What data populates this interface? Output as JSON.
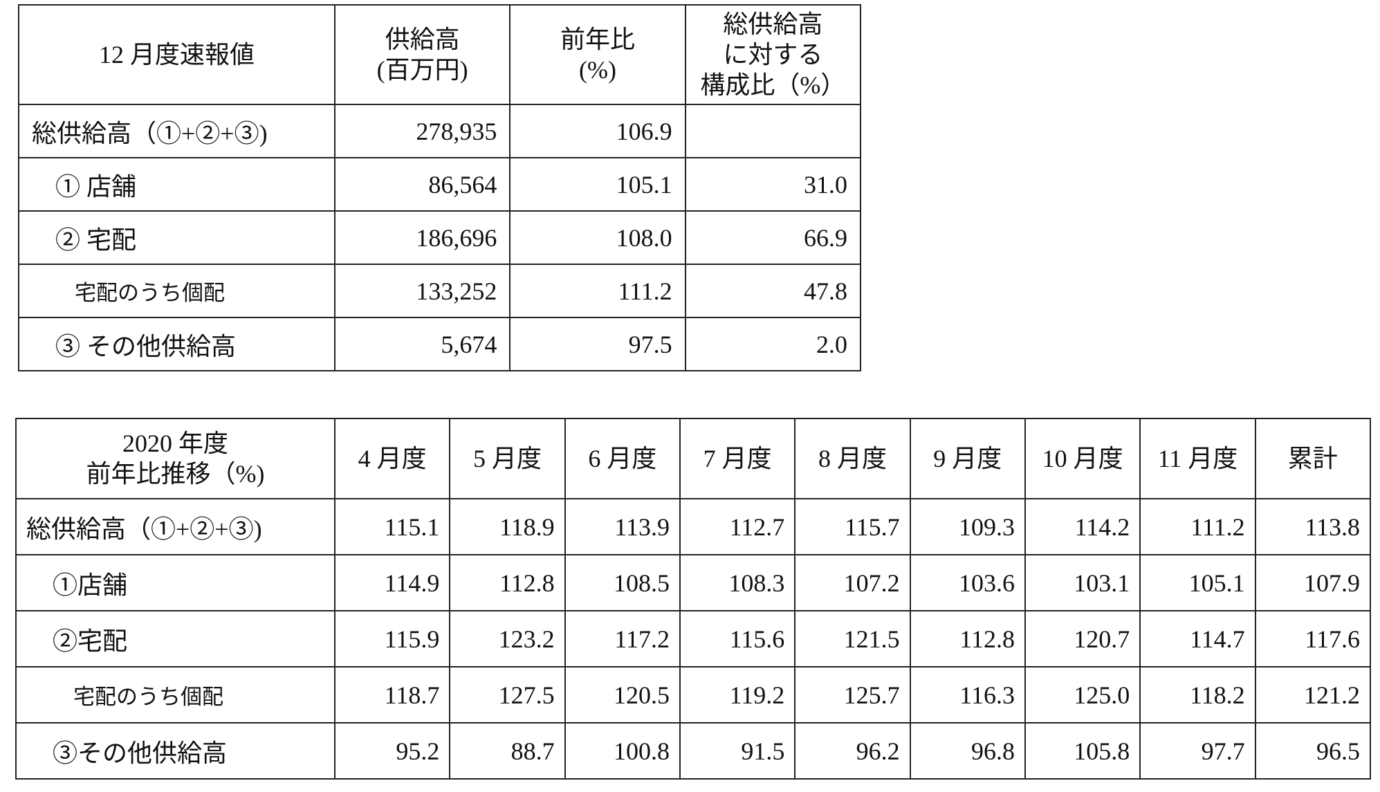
{
  "table1": {
    "header": [
      [
        "12 月度速報値"
      ],
      [
        "供給高",
        "(百万円)"
      ],
      [
        "前年比",
        "(%)"
      ],
      [
        "総供給高",
        "に対する",
        "構成比（%）"
      ]
    ],
    "rows": [
      [
        "総供給高（①+②+③)",
        "278,935",
        "106.9",
        null
      ],
      [
        "① 店舗",
        "86,564",
        "105.1",
        "31.0"
      ],
      [
        "② 宅配",
        "186,696",
        "108.0",
        "66.9"
      ],
      [
        "宅配のうち個配",
        "133,252",
        "111.2",
        "47.8"
      ],
      [
        "③ その他供給高",
        "5,674",
        "97.5",
        "2.0"
      ]
    ]
  },
  "table2": {
    "header": [
      [
        "2020 年度",
        "前年比推移（%)"
      ],
      [
        "4 月度"
      ],
      [
        "5 月度"
      ],
      [
        "6 月度"
      ],
      [
        "7 月度"
      ],
      [
        "8 月度"
      ],
      [
        "9 月度"
      ],
      [
        "10 月度"
      ],
      [
        "11 月度"
      ],
      [
        "累計"
      ]
    ],
    "rows": [
      [
        "総供給高（①+②+③)",
        "115.1",
        "118.9",
        "113.9",
        "112.7",
        "115.7",
        "109.3",
        "114.2",
        "111.2",
        "113.8"
      ],
      [
        "①店舗",
        "114.9",
        "112.8",
        "108.5",
        "108.3",
        "107.2",
        "103.6",
        "103.1",
        "105.1",
        "107.9"
      ],
      [
        "②宅配",
        "115.9",
        "123.2",
        "117.2",
        "115.6",
        "121.5",
        "112.8",
        "120.7",
        "114.7",
        "117.6"
      ],
      [
        "宅配のうち個配",
        "118.7",
        "127.5",
        "120.5",
        "119.2",
        "125.7",
        "116.3",
        "125.0",
        "118.2",
        "121.2"
      ],
      [
        "③その他供給高",
        "95.2",
        "88.7",
        "100.8",
        "91.5",
        "96.2",
        "96.8",
        "105.8",
        "97.7",
        "96.5"
      ]
    ]
  }
}
